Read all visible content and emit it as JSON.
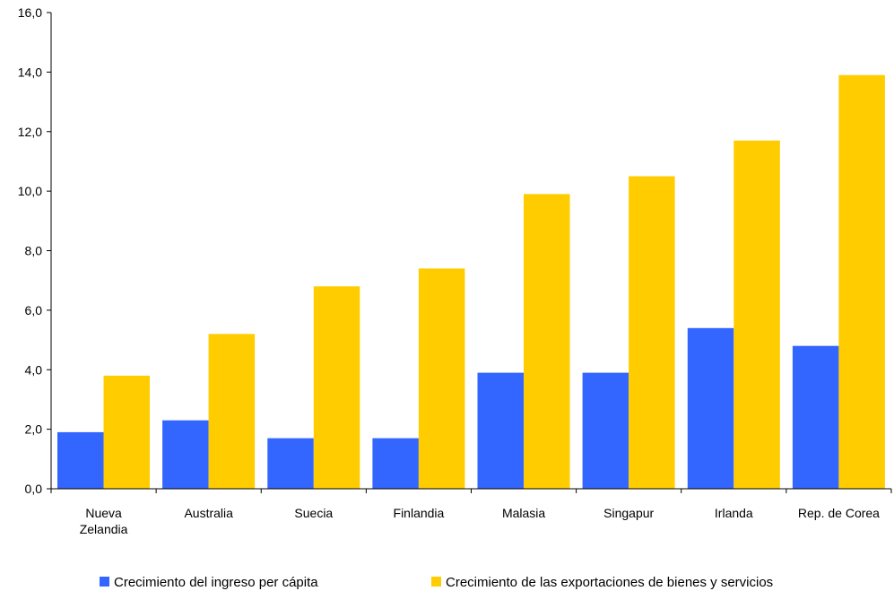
{
  "chart_data": {
    "type": "bar",
    "title": "",
    "xlabel": "",
    "ylabel": "",
    "ylim": [
      0,
      16
    ],
    "yticks": [
      "0,0",
      "2,0",
      "4,0",
      "6,0",
      "8,0",
      "10,0",
      "12,0",
      "14,0",
      "16,0"
    ],
    "ytick_values": [
      0,
      2,
      4,
      6,
      8,
      10,
      12,
      14,
      16
    ],
    "grid": false,
    "legend_position": "bottom",
    "categories": [
      [
        "Nueva",
        "Zelandia"
      ],
      [
        "Australia"
      ],
      [
        "Suecia"
      ],
      [
        "Finlandia"
      ],
      [
        "Malasia"
      ],
      [
        "Singapur"
      ],
      [
        "Irlanda"
      ],
      [
        "Rep. de Corea"
      ]
    ],
    "series": [
      {
        "name": "Crecimiento del ingreso per cápita",
        "color": "#3366ff",
        "values": [
          1.9,
          2.3,
          1.7,
          1.7,
          3.9,
          3.9,
          5.4,
          4.8
        ]
      },
      {
        "name": "Crecimiento de las exportaciones de bienes y servicios",
        "color": "#ffcc00",
        "values": [
          3.8,
          5.2,
          6.8,
          7.4,
          9.9,
          10.5,
          11.7,
          13.9
        ]
      }
    ]
  }
}
